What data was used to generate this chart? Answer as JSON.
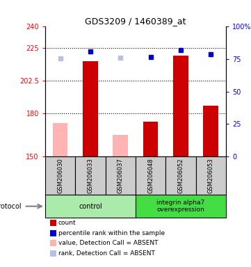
{
  "title": "GDS3209 / 1460389_at",
  "samples": [
    "GSM206030",
    "GSM206033",
    "GSM206037",
    "GSM206048",
    "GSM206052",
    "GSM206053"
  ],
  "bar_values": [
    null,
    216.0,
    null,
    174.0,
    220.0,
    185.0
  ],
  "bar_absent_values": [
    173.0,
    null,
    165.0,
    null,
    null,
    null
  ],
  "rank_values": [
    null,
    223.0,
    null,
    219.0,
    224.0,
    221.0
  ],
  "rank_absent_values": [
    218.0,
    null,
    218.5,
    null,
    null,
    null
  ],
  "ylim_left": [
    150,
    240
  ],
  "ylim_right": [
    0,
    100
  ],
  "yticks_left": [
    150,
    180,
    202.5,
    225,
    240
  ],
  "ytick_labels_left": [
    "150",
    "180",
    "202.5",
    "225",
    "240"
  ],
  "yticks_right": [
    0,
    25,
    50,
    75,
    100
  ],
  "ytick_labels_right": [
    "0",
    "25",
    "50",
    "75",
    "100%"
  ],
  "dotted_lines": [
    225,
    202.5,
    180
  ],
  "bar_color": "#cc0000",
  "bar_absent_color": "#ffb3b3",
  "rank_color": "#0000cc",
  "rank_absent_color": "#b8c0e0",
  "group1_color": "#aaeaaa",
  "group2_color": "#44dd44",
  "sample_box_color": "#cccccc",
  "bar_width": 0.5,
  "legend_items": [
    {
      "color": "#cc0000",
      "label": "count"
    },
    {
      "color": "#0000cc",
      "label": "percentile rank within the sample"
    },
    {
      "color": "#ffb3b3",
      "label": "value, Detection Call = ABSENT"
    },
    {
      "color": "#b8c0e0",
      "label": "rank, Detection Call = ABSENT"
    }
  ]
}
